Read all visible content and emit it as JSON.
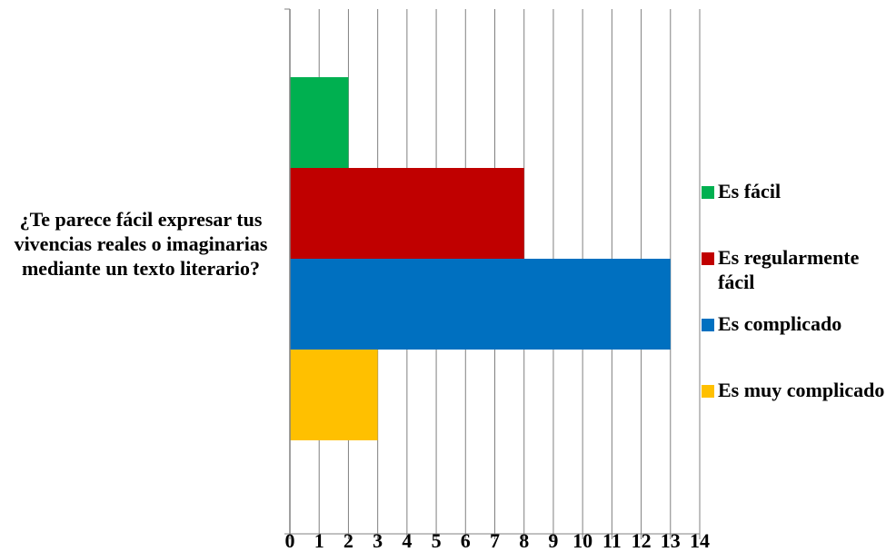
{
  "chart_data": {
    "type": "bar",
    "orientation": "horizontal",
    "categories": [
      "¿Te parece fácil expresar tus vivencias reales o imaginarias mediante un texto literario?"
    ],
    "series": [
      {
        "name": "Es fácil",
        "values": [
          2
        ],
        "color": "#00B050"
      },
      {
        "name": "Es regularmente fácil",
        "values": [
          8
        ],
        "color": "#C00000"
      },
      {
        "name": "Es complicado",
        "values": [
          13
        ],
        "color": "#0070C0"
      },
      {
        "name": "Es muy complicado",
        "values": [
          3
        ],
        "color": "#FFC000"
      }
    ],
    "xlim": [
      0,
      14
    ],
    "xticks": [
      "0",
      "1",
      "2",
      "3",
      "4",
      "5",
      "6",
      "7",
      "8",
      "9",
      "10",
      "11",
      "12",
      "13",
      "14"
    ],
    "grid": true,
    "legend_position": "right"
  }
}
